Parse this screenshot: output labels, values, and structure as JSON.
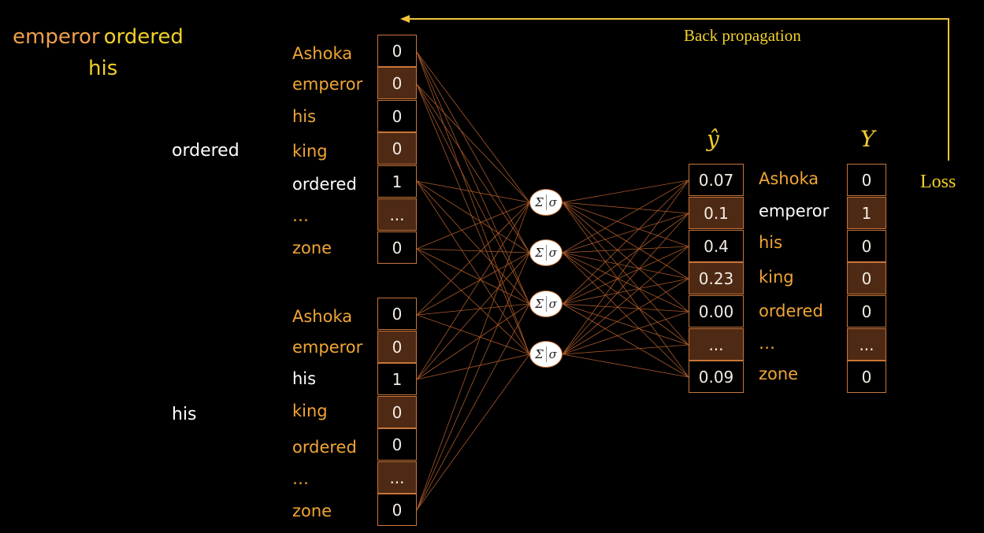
{
  "title": {
    "word1": "emperor",
    "word2": "ordered",
    "word3": "his"
  },
  "vocab": [
    "Ashoka",
    "emperor",
    "his",
    "king",
    "ordered",
    "…",
    "zone"
  ],
  "inputs": [
    {
      "label": "ordered",
      "values": [
        "0",
        "0",
        "0",
        "0",
        "1",
        "...",
        "0"
      ],
      "active_index": 4
    },
    {
      "label": "his",
      "values": [
        "0",
        "0",
        "1",
        "0",
        "0",
        "...",
        "0"
      ],
      "active_index": 2
    }
  ],
  "neuron": {
    "sum": "Σ",
    "sigma": "σ"
  },
  "prediction": {
    "header": "ŷ",
    "values": [
      "0.07",
      "0.1",
      "0.4",
      "0.23",
      "0.00",
      "...",
      "0.09"
    ]
  },
  "target": {
    "header": "Y",
    "values": [
      "0",
      "1",
      "0",
      "0",
      "0",
      "...",
      "0"
    ],
    "active_index": 1
  },
  "back_propagation": "Back propagation",
  "loss": "Loss",
  "colors": {
    "accent_orange": "#f0a536",
    "accent_yellow": "#f2d028",
    "cell_border": "#c8753a",
    "cell_shade": "#4e2a14",
    "edge": "#a8582a"
  }
}
